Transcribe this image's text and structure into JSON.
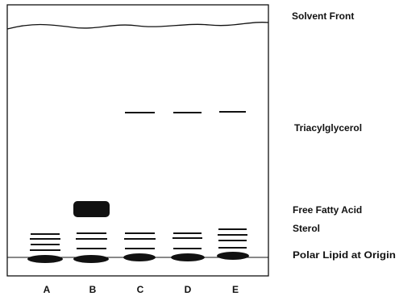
{
  "labels": {
    "solvent_front": "Solvent Front",
    "triacylglycerol": "Triacylglycerol",
    "free_fatty_acid": "Free Fatty Acid",
    "sterol": "Sterol",
    "polar_lipid": "Polar Lipid at Origin"
  },
  "lanes": [
    "A",
    "B",
    "C",
    "D",
    "E"
  ]
}
